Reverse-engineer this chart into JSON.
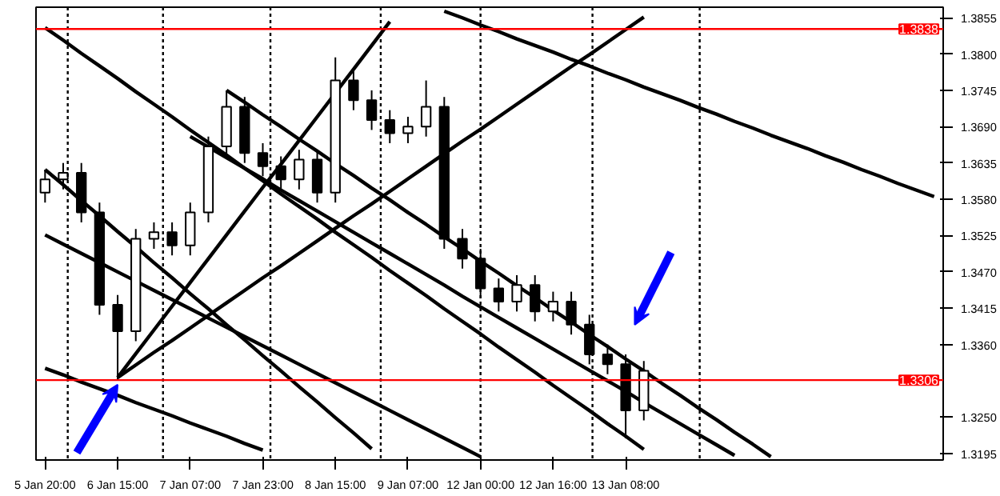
{
  "chart_data": {
    "type": "candlestick",
    "categories": [
      "5 Jan 20:00",
      null,
      null,
      null,
      "6 Jan 15:00",
      null,
      null,
      null,
      "7 Jan 07:00",
      null,
      null,
      null,
      "7 Jan 23:00",
      null,
      null,
      null,
      "8 Jan 15:00",
      null,
      null,
      null,
      "9 Jan 07:00",
      null,
      null,
      null,
      "12 Jan 00:00",
      null,
      null,
      null,
      "12 Jan 16:00",
      null,
      null,
      null,
      "13 Jan 08:00",
      null,
      null,
      null,
      null,
      null,
      null,
      null,
      null,
      null,
      null,
      null,
      null,
      null,
      null,
      null,
      null,
      null
    ],
    "ohlc": [
      [
        1.359,
        1.3625,
        1.3575,
        1.361
      ],
      [
        1.361,
        1.3635,
        1.3595,
        1.362
      ],
      [
        1.362,
        1.3635,
        1.3545,
        1.356
      ],
      [
        1.356,
        1.3575,
        1.3405,
        1.342
      ],
      [
        1.342,
        1.3435,
        1.3306,
        1.338
      ],
      [
        1.338,
        1.3535,
        1.3365,
        1.352
      ],
      [
        1.352,
        1.3545,
        1.3505,
        1.353
      ],
      [
        1.353,
        1.3545,
        1.3495,
        1.351
      ],
      [
        1.351,
        1.3575,
        1.3495,
        1.356
      ],
      [
        1.356,
        1.3675,
        1.3545,
        1.366
      ],
      [
        1.366,
        1.3745,
        1.3645,
        1.372
      ],
      [
        1.372,
        1.3735,
        1.3635,
        1.365
      ],
      [
        1.365,
        1.3665,
        1.3615,
        1.363
      ],
      [
        1.363,
        1.3645,
        1.3595,
        1.361
      ],
      [
        1.361,
        1.3655,
        1.3595,
        1.364
      ],
      [
        1.364,
        1.3655,
        1.3575,
        1.359
      ],
      [
        1.359,
        1.3795,
        1.3575,
        1.376
      ],
      [
        1.376,
        1.3775,
        1.3715,
        1.373
      ],
      [
        1.373,
        1.3745,
        1.3685,
        1.37
      ],
      [
        1.37,
        1.3715,
        1.3665,
        1.368
      ],
      [
        1.368,
        1.3705,
        1.3665,
        1.369
      ],
      [
        1.369,
        1.376,
        1.3675,
        1.372
      ],
      [
        1.372,
        1.3735,
        1.3505,
        1.352
      ],
      [
        1.352,
        1.3535,
        1.3475,
        1.349
      ],
      [
        1.349,
        1.3505,
        1.343,
        1.3445
      ],
      [
        1.3445,
        1.346,
        1.341,
        1.3425
      ],
      [
        1.3425,
        1.3465,
        1.341,
        1.345
      ],
      [
        1.345,
        1.3465,
        1.3395,
        1.341
      ],
      [
        1.341,
        1.344,
        1.3395,
        1.3425
      ],
      [
        1.3425,
        1.344,
        1.3375,
        1.339
      ],
      [
        1.339,
        1.3405,
        1.333,
        1.3345
      ],
      [
        1.3345,
        1.336,
        1.3315,
        1.333
      ],
      [
        1.333,
        1.3345,
        1.3218,
        1.326
      ],
      [
        1.326,
        1.3335,
        1.3245,
        1.332
      ],
      null,
      null,
      null,
      null,
      null,
      null,
      null,
      null,
      null,
      null,
      null,
      null,
      null,
      null,
      null,
      null
    ],
    "series": [
      {
        "type": "line",
        "color": "#000000",
        "values": [
          1.3625,
          1.3602,
          1.3578,
          1.3555,
          1.3531,
          1.3508,
          1.3484,
          1.3461,
          1.3437,
          1.3414,
          1.339,
          1.3367,
          1.3343,
          1.332,
          1.3296,
          1.3273,
          1.3249,
          1.3226,
          1.3202,
          null,
          null,
          null,
          null,
          null,
          null,
          null,
          null,
          null,
          null,
          null,
          null,
          null,
          null,
          null,
          null,
          null,
          null,
          null,
          null,
          null,
          null,
          null,
          null,
          null,
          null,
          null,
          null,
          null,
          null,
          null
        ]
      },
      {
        "type": "line",
        "color": "#000000",
        "values": [
          1.3526,
          1.3512,
          1.3498,
          1.3484,
          1.347,
          1.3456,
          1.3442,
          1.3428,
          1.3414,
          1.34,
          1.3386,
          1.3372,
          1.3358,
          1.3344,
          1.333,
          1.3316,
          1.3302,
          1.3288,
          1.3274,
          1.326,
          1.3246,
          1.3232,
          1.3218,
          1.3204,
          1.319,
          null,
          null,
          null,
          null,
          null,
          null,
          null,
          null,
          null,
          null,
          null,
          null,
          null,
          null,
          null,
          null,
          null,
          null,
          null,
          null,
          null,
          null,
          null,
          null,
          null
        ]
      },
      {
        "type": "line",
        "color": "#000000",
        "values": [
          1.3324,
          1.3314,
          1.3303,
          1.3293,
          1.3283,
          1.3272,
          1.3262,
          1.3252,
          1.3241,
          1.3231,
          1.3221,
          1.321,
          1.32,
          null,
          null,
          null,
          null,
          null,
          null,
          null,
          null,
          null,
          null,
          null,
          null,
          null,
          null,
          null,
          null,
          null,
          null,
          null,
          null,
          null,
          null,
          null,
          null,
          null,
          null,
          null,
          null,
          null,
          null,
          null,
          null,
          null,
          null,
          null,
          null,
          null
        ]
      },
      {
        "type": "line",
        "color": "#000000",
        "values": [
          1.384,
          1.3821,
          1.3801,
          1.3782,
          1.3763,
          1.3743,
          1.3724,
          1.3705,
          1.3685,
          1.3666,
          1.3647,
          1.3627,
          1.3608,
          1.3588,
          1.3569,
          1.355,
          1.353,
          1.3511,
          1.3492,
          1.3472,
          1.3453,
          1.3434,
          1.3414,
          1.3395,
          1.3376,
          1.3356,
          1.3337,
          1.3318,
          1.3298,
          1.3279,
          1.326,
          1.324,
          1.3221,
          1.3201,
          null,
          null,
          null,
          null,
          null,
          null,
          null,
          null,
          null,
          null,
          null,
          null,
          null,
          null,
          null,
          null
        ]
      },
      {
        "type": "line",
        "color": "#000000",
        "values": [
          null,
          null,
          null,
          null,
          null,
          null,
          null,
          null,
          null,
          null,
          1.3745,
          1.3727,
          1.3708,
          1.369,
          1.3671,
          1.3653,
          1.3634,
          1.3616,
          1.3597,
          1.3579,
          1.356,
          1.3542,
          1.3523,
          1.3505,
          1.3486,
          1.3468,
          1.3449,
          1.3431,
          1.3412,
          1.3394,
          1.3375,
          1.3357,
          1.3338,
          1.332,
          1.3301,
          1.3283,
          1.3264,
          1.3246,
          1.3227,
          1.3209,
          1.319,
          null,
          null,
          null,
          null,
          null,
          null,
          null,
          null,
          null
        ]
      },
      {
        "type": "line",
        "color": "#000000",
        "values": [
          null,
          null,
          null,
          null,
          null,
          null,
          null,
          null,
          1.3675,
          1.3659,
          1.3643,
          1.3627,
          1.3611,
          1.3594,
          1.3578,
          1.3562,
          1.3546,
          1.353,
          1.3514,
          1.3498,
          1.3482,
          1.3466,
          1.345,
          1.3433,
          1.3417,
          1.3401,
          1.3385,
          1.3369,
          1.3353,
          1.3337,
          1.3321,
          1.3305,
          1.3289,
          1.3272,
          1.3256,
          1.324,
          1.3224,
          1.3208,
          1.3192,
          null,
          null,
          null,
          null,
          null,
          null,
          null,
          null,
          null,
          null,
          null
        ]
      },
      {
        "type": "line",
        "color": "#000000",
        "values": [
          null,
          null,
          null,
          null,
          1.331,
          1.3346,
          1.3382,
          1.3418,
          1.3454,
          1.349,
          1.3526,
          1.3562,
          1.3598,
          1.3633,
          1.3669,
          1.3705,
          1.3741,
          1.3777,
          1.3813,
          1.3849,
          null,
          null,
          null,
          null,
          null,
          null,
          null,
          null,
          null,
          null,
          null,
          null,
          null,
          null,
          null,
          null,
          null,
          null,
          null,
          null,
          null,
          null,
          null,
          null,
          null,
          null,
          null,
          null,
          null,
          null
        ]
      },
      {
        "type": "line",
        "color": "#000000",
        "values": [
          null,
          null,
          null,
          null,
          1.331,
          1.3329,
          1.3348,
          1.3366,
          1.3385,
          1.3404,
          1.3423,
          1.3442,
          1.3461,
          1.3479,
          1.3498,
          1.3517,
          1.3536,
          1.3555,
          1.3573,
          1.3592,
          1.3611,
          1.363,
          1.3649,
          1.3668,
          1.3686,
          1.3705,
          1.3724,
          1.3743,
          1.3762,
          1.3781,
          1.3799,
          1.3818,
          1.3837,
          1.3856,
          null,
          null,
          null,
          null,
          null,
          null,
          null,
          null,
          null,
          null,
          null,
          null,
          null,
          null,
          null,
          null
        ]
      },
      {
        "type": "line",
        "color": "#000000",
        "values": [
          null,
          null,
          null,
          null,
          null,
          null,
          null,
          null,
          null,
          null,
          null,
          null,
          null,
          null,
          null,
          null,
          null,
          null,
          null,
          null,
          null,
          null,
          1.3865,
          1.3855,
          1.3844,
          1.3834,
          1.3823,
          1.3813,
          1.3803,
          1.3792,
          1.3782,
          1.3771,
          1.3761,
          1.375,
          1.374,
          1.373,
          1.3719,
          1.3709,
          1.3698,
          1.3688,
          1.3677,
          1.3667,
          1.3657,
          1.3646,
          1.3636,
          1.3625,
          1.3615,
          1.3604,
          1.3594,
          1.3584
        ]
      }
    ],
    "ylim": [
      1.3185,
      1.3871
    ],
    "yticks": [
      {
        "value": 1.3195,
        "label": "1.3195"
      },
      {
        "value": 1.325,
        "label": "1.3250"
      },
      {
        "value": 1.336,
        "label": "1.3360"
      },
      {
        "value": 1.3415,
        "label": "1.3415"
      },
      {
        "value": 1.347,
        "label": "1.3470"
      },
      {
        "value": 1.3525,
        "label": "1.3525"
      },
      {
        "value": 1.358,
        "label": "1.3580"
      },
      {
        "value": 1.3635,
        "label": "1.3635"
      },
      {
        "value": 1.369,
        "label": "1.3690"
      },
      {
        "value": 1.3745,
        "label": "1.3745"
      },
      {
        "value": 1.38,
        "label": "1.3800"
      },
      {
        "value": 1.3855,
        "label": "1.3855"
      }
    ],
    "ref_lines": [
      {
        "axis": "y",
        "value": 1.3838,
        "label": "1.3838",
        "color": "#ff0000"
      },
      {
        "axis": "y",
        "value": 1.3306,
        "label": "1.3306",
        "color": "#ff0000"
      }
    ],
    "grid": "x"
  }
}
